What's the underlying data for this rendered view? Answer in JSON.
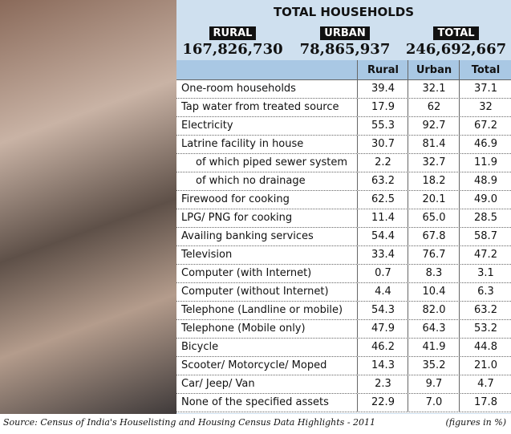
{
  "header": {
    "title": "TOTAL HOUSEHOLDS",
    "totals": [
      {
        "label": "RURAL",
        "value": "167,826,730"
      },
      {
        "label": "URBAN",
        "value": "78,865,937"
      },
      {
        "label": "TOTAL",
        "value": "246,692,667"
      }
    ]
  },
  "table": {
    "columns": [
      "Rural",
      "Urban",
      "Total"
    ],
    "rows": [
      [
        "One-room households",
        "39.4",
        "32.1",
        "37.1"
      ],
      [
        "Tap water from treated source",
        "17.9",
        "62",
        "32"
      ],
      [
        "Electricity",
        "55.3",
        "92.7",
        "67.2"
      ],
      [
        "Latrine facility in house",
        "30.7",
        "81.4",
        "46.9"
      ],
      [
        "of which piped sewer system",
        "2.2",
        "32.7",
        "11.9"
      ],
      [
        "of which no drainage",
        "63.2",
        "18.2",
        "48.9"
      ],
      [
        "Firewood for cooking",
        "62.5",
        "20.1",
        "49.0"
      ],
      [
        "LPG/ PNG for cooking",
        "11.4",
        "65.0",
        "28.5"
      ],
      [
        "Availing banking services",
        "54.4",
        "67.8",
        "58.7"
      ],
      [
        "Television",
        "33.4",
        "76.7",
        "47.2"
      ],
      [
        "Computer (with Internet)",
        "0.7",
        "8.3",
        "3.1"
      ],
      [
        "Computer (without Internet)",
        "4.4",
        "10.4",
        "6.3"
      ],
      [
        "Telephone (Landline or mobile)",
        "54.3",
        "82.0",
        "63.2"
      ],
      [
        "Telephone (Mobile only)",
        "47.9",
        "64.3",
        "53.2"
      ],
      [
        "Bicycle",
        "46.2",
        "41.9",
        "44.8"
      ],
      [
        "Scooter/ Motorcycle/ Moped",
        "14.3",
        "35.2",
        "21.0"
      ],
      [
        "Car/ Jeep/ Van",
        "2.3",
        "9.7",
        "4.7"
      ],
      [
        "None of the specified assets",
        "22.9",
        "7.0",
        "17.8"
      ]
    ]
  },
  "footer": {
    "source": "Source: Census  of India's Houselisting and Housing Census Data Highlights - 2011",
    "note": "(figures in %)"
  }
}
